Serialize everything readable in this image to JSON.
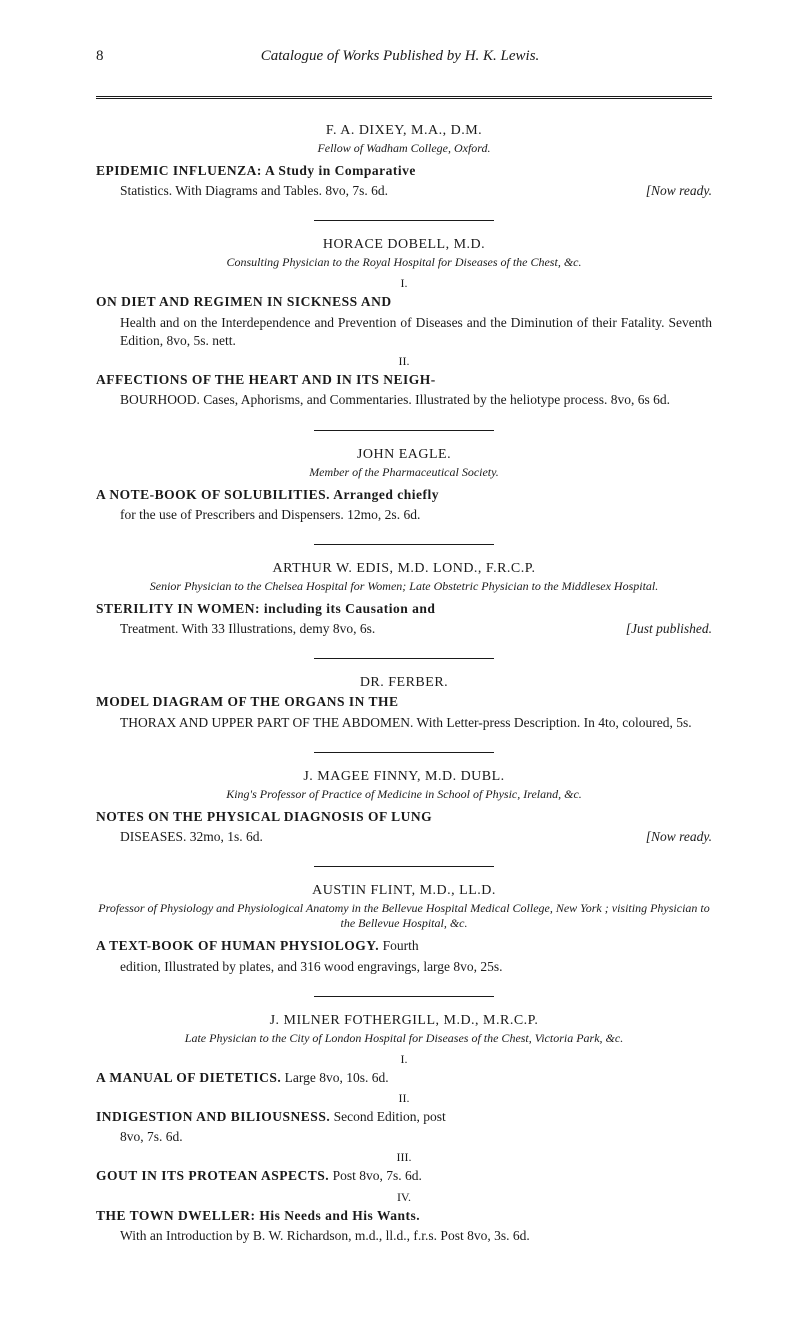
{
  "pageNumber": "8",
  "runningTitle": "Catalogue of Works Published by H. K. Lewis.",
  "sections": [
    {
      "authorLine": "F. A. DIXEY, M.A., D.M.",
      "authorSub": "Fellow of Wadham College, Oxford.",
      "entries": [
        {
          "titleBold": "EPIDEMIC INFLUENZA: A Study in Comparative",
          "body": "Statistics. With Diagrams and Tables. 8vo, 7s. 6d.",
          "rightNote": "[Now ready."
        }
      ]
    },
    {
      "authorLine": "HORACE DOBELL, M.D.",
      "authorSub": "Consulting Physician to the Royal Hospital for Diseases of the Chest, &c.",
      "entries": [
        {
          "roman": "I.",
          "titleBold": "ON DIET AND REGIMEN IN SICKNESS AND",
          "body": "Health and on the Interdependence and Prevention of Diseases and the Diminution of their Fatality. Seventh Edition, 8vo, 5s. nett."
        },
        {
          "roman": "II.",
          "titleBold": "AFFECTIONS OF THE HEART AND IN ITS NEIGH-",
          "body": "BOURHOOD. Cases, Aphorisms, and Commentaries. Illustrated by the heliotype process. 8vo, 6s 6d."
        }
      ]
    },
    {
      "authorLine": "JOHN EAGLE.",
      "authorSub": "Member of the Pharmaceutical Society.",
      "entries": [
        {
          "titleBold": "A NOTE-BOOK OF SOLUBILITIES. Arranged chiefly",
          "body": "for the use of Prescribers and Dispensers. 12mo, 2s. 6d."
        }
      ]
    },
    {
      "authorLine": "ARTHUR W. EDIS, M.D. LOND., F.R.C.P.",
      "authorSub": "Senior Physician to the Chelsea Hospital for Women; Late Obstetric Physician to the Middlesex Hospital.",
      "entries": [
        {
          "titleBold": "STERILITY IN WOMEN: including its Causation and",
          "body": "Treatment. With 33 Illustrations, demy 8vo, 6s.",
          "rightNote": "[Just published."
        }
      ]
    },
    {
      "authorLine": "DR. FERBER.",
      "entries": [
        {
          "titleBold": "MODEL DIAGRAM OF THE ORGANS IN THE",
          "body": "THORAX AND UPPER PART OF THE ABDOMEN. With Letter-press Description. In 4to, coloured, 5s."
        }
      ]
    },
    {
      "authorLine": "J. MAGEE FINNY, M.D. DUBL.",
      "authorSub": "King's Professor of Practice of Medicine in School of Physic, Ireland, &c.",
      "entries": [
        {
          "titleBold": "NOTES ON THE PHYSICAL DIAGNOSIS OF LUNG",
          "body": "DISEASES. 32mo, 1s. 6d.",
          "rightNote": "[Now ready."
        }
      ]
    },
    {
      "authorLine": "AUSTIN FLINT, M.D., LL.D.",
      "authorSub": "Professor of Physiology and Physiological Anatomy in the Bellevue Hospital Medical College, New York ; visiting Physician to the Bellevue Hospital, &c.",
      "entries": [
        {
          "titleBold": "A TEXT-BOOK OF HUMAN PHYSIOLOGY.",
          "titleTail": " Fourth",
          "body": "edition, Illustrated by plates, and 316 wood engravings, large 8vo, 25s."
        }
      ]
    },
    {
      "authorLine": "J. MILNER FOTHERGILL, M.D., M.R.C.P.",
      "authorSub": "Late Physician to the City of London Hospital for Diseases of the Chest, Victoria Park, &c.",
      "entries": [
        {
          "roman": "I.",
          "titleBold": "A MANUAL OF DIETETICS.",
          "titleTail": " Large 8vo, 10s. 6d."
        },
        {
          "roman": "II.",
          "titleBold": "INDIGESTION AND BILIOUSNESS.",
          "titleTail": " Second Edition, post",
          "body": "8vo, 7s. 6d."
        },
        {
          "roman": "III.",
          "titleBold": "GOUT IN ITS PROTEAN ASPECTS.",
          "titleTail": " Post 8vo, 7s. 6d."
        },
        {
          "roman": "IV.",
          "titleBold": "THE TOWN DWELLER: His Needs and His Wants.",
          "body": "With an Introduction by B. W. Richardson, m.d., ll.d., f.r.s. Post 8vo, 3s. 6d.",
          "bodySmallcaps": true
        }
      ]
    }
  ]
}
